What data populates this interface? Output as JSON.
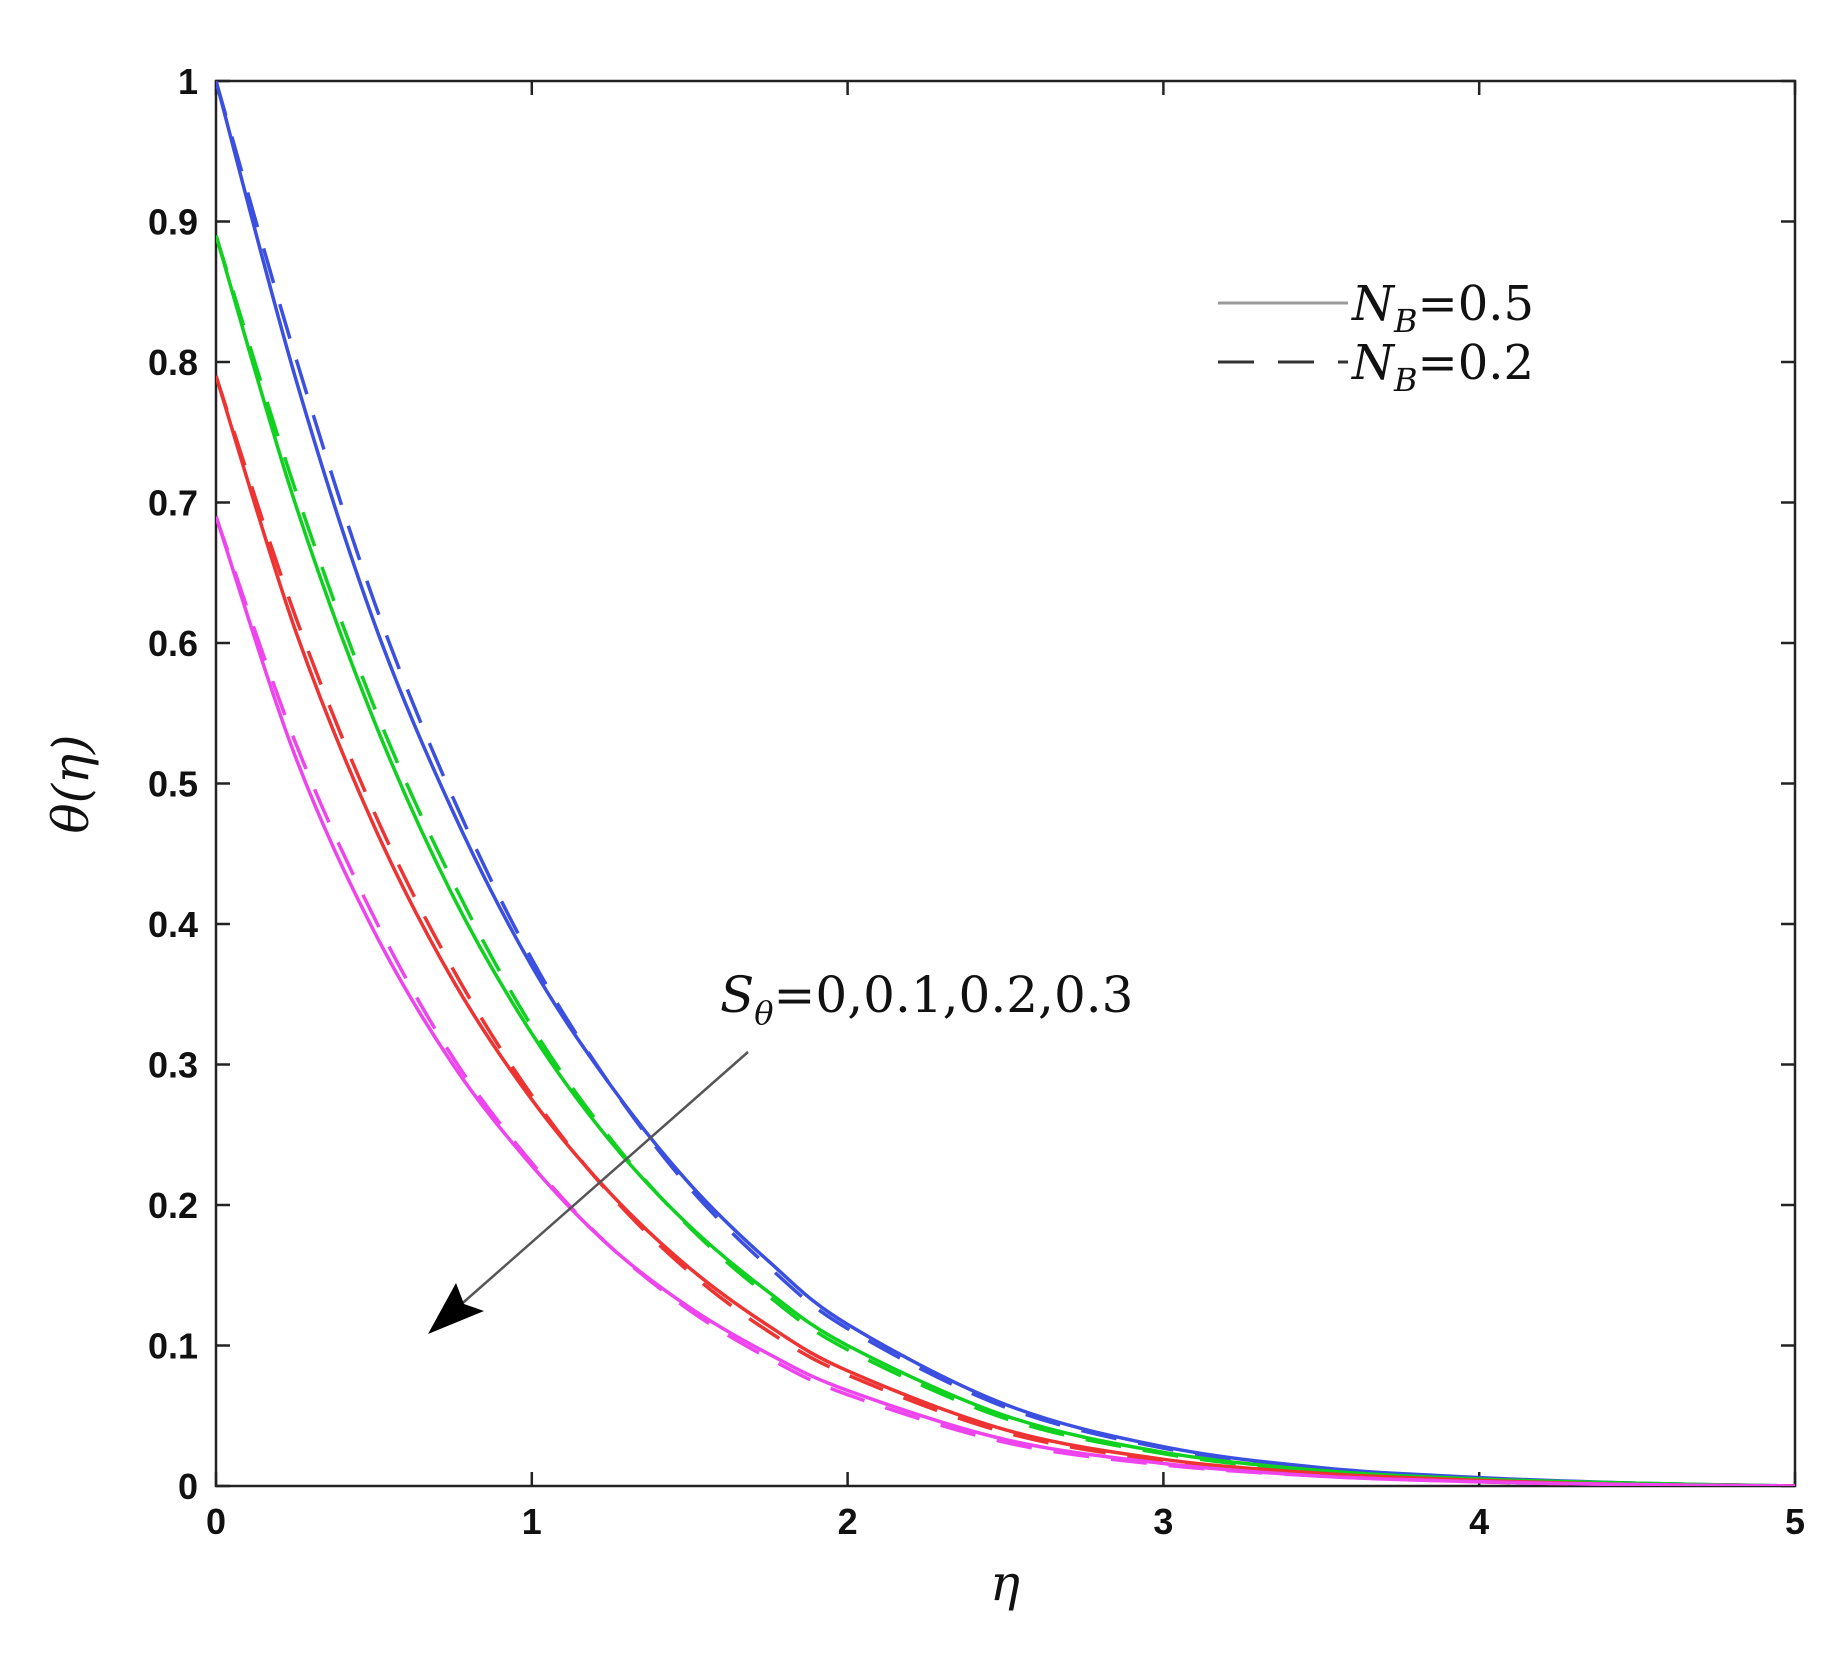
{
  "chart_data": {
    "type": "line",
    "xlabel": "η",
    "ylabel": "θ(η)",
    "xlim": [
      0,
      5
    ],
    "ylim": [
      0,
      1
    ],
    "xticks": [
      "0",
      "1",
      "2",
      "3",
      "4",
      "5"
    ],
    "yticks": [
      "0",
      "0.1",
      "0.2",
      "0.3",
      "0.4",
      "0.5",
      "0.6",
      "0.7",
      "0.8",
      "0.9",
      "1"
    ],
    "grid": false,
    "legend": {
      "placement": "top-right",
      "entries": [
        {
          "style": "solid",
          "symbol": "N",
          "subscript": "B",
          "value": "=0.5"
        },
        {
          "style": "dashed",
          "symbol": "N",
          "subscript": "B",
          "value": "=0.2"
        }
      ]
    },
    "annotation": {
      "symbol": "S",
      "subscript": "θ",
      "value": "=0,0.1,0.2,0.3",
      "arrow": "pointing toward lower curves (increasing S_θ)"
    },
    "x": [
      0,
      0.25,
      0.5,
      0.75,
      1,
      1.25,
      1.5,
      1.75,
      2,
      2.5,
      3,
      3.5,
      4,
      4.5,
      5
    ],
    "series": [
      {
        "color": "#3b4fe0",
        "style": "solid",
        "values": [
          1.0,
          0.79,
          0.615,
          0.48,
          0.37,
          0.285,
          0.215,
          0.16,
          0.115,
          0.058,
          0.028,
          0.013,
          0.006,
          0.002,
          0.0
        ]
      },
      {
        "color": "#3b4fe0",
        "style": "dashed",
        "values": [
          1.0,
          0.805,
          0.63,
          0.49,
          0.375,
          0.285,
          0.212,
          0.156,
          0.112,
          0.056,
          0.027,
          0.012,
          0.005,
          0.002,
          0.0
        ]
      },
      {
        "color": "#10d020",
        "style": "solid",
        "values": [
          0.89,
          0.7,
          0.545,
          0.42,
          0.322,
          0.245,
          0.185,
          0.138,
          0.1,
          0.05,
          0.024,
          0.011,
          0.005,
          0.002,
          0.0
        ]
      },
      {
        "color": "#10d020",
        "style": "dashed",
        "values": [
          0.89,
          0.71,
          0.555,
          0.43,
          0.327,
          0.247,
          0.184,
          0.135,
          0.097,
          0.048,
          0.023,
          0.01,
          0.004,
          0.001,
          0.0
        ]
      },
      {
        "color": "#ee3333",
        "style": "solid",
        "values": [
          0.79,
          0.61,
          0.47,
          0.36,
          0.275,
          0.208,
          0.155,
          0.114,
          0.082,
          0.04,
          0.019,
          0.009,
          0.004,
          0.001,
          0.0
        ]
      },
      {
        "color": "#ee3333",
        "style": "dashed",
        "values": [
          0.79,
          0.62,
          0.48,
          0.368,
          0.278,
          0.207,
          0.152,
          0.11,
          0.079,
          0.038,
          0.018,
          0.008,
          0.003,
          0.001,
          0.0
        ]
      },
      {
        "color": "#ee44ee",
        "style": "solid",
        "values": [
          0.69,
          0.52,
          0.395,
          0.3,
          0.228,
          0.17,
          0.127,
          0.094,
          0.068,
          0.033,
          0.016,
          0.007,
          0.003,
          0.001,
          0.0
        ]
      },
      {
        "color": "#ee44ee",
        "style": "dashed",
        "values": [
          0.69,
          0.53,
          0.405,
          0.305,
          0.23,
          0.17,
          0.125,
          0.091,
          0.065,
          0.031,
          0.015,
          0.007,
          0.003,
          0.001,
          0.0
        ]
      }
    ]
  }
}
